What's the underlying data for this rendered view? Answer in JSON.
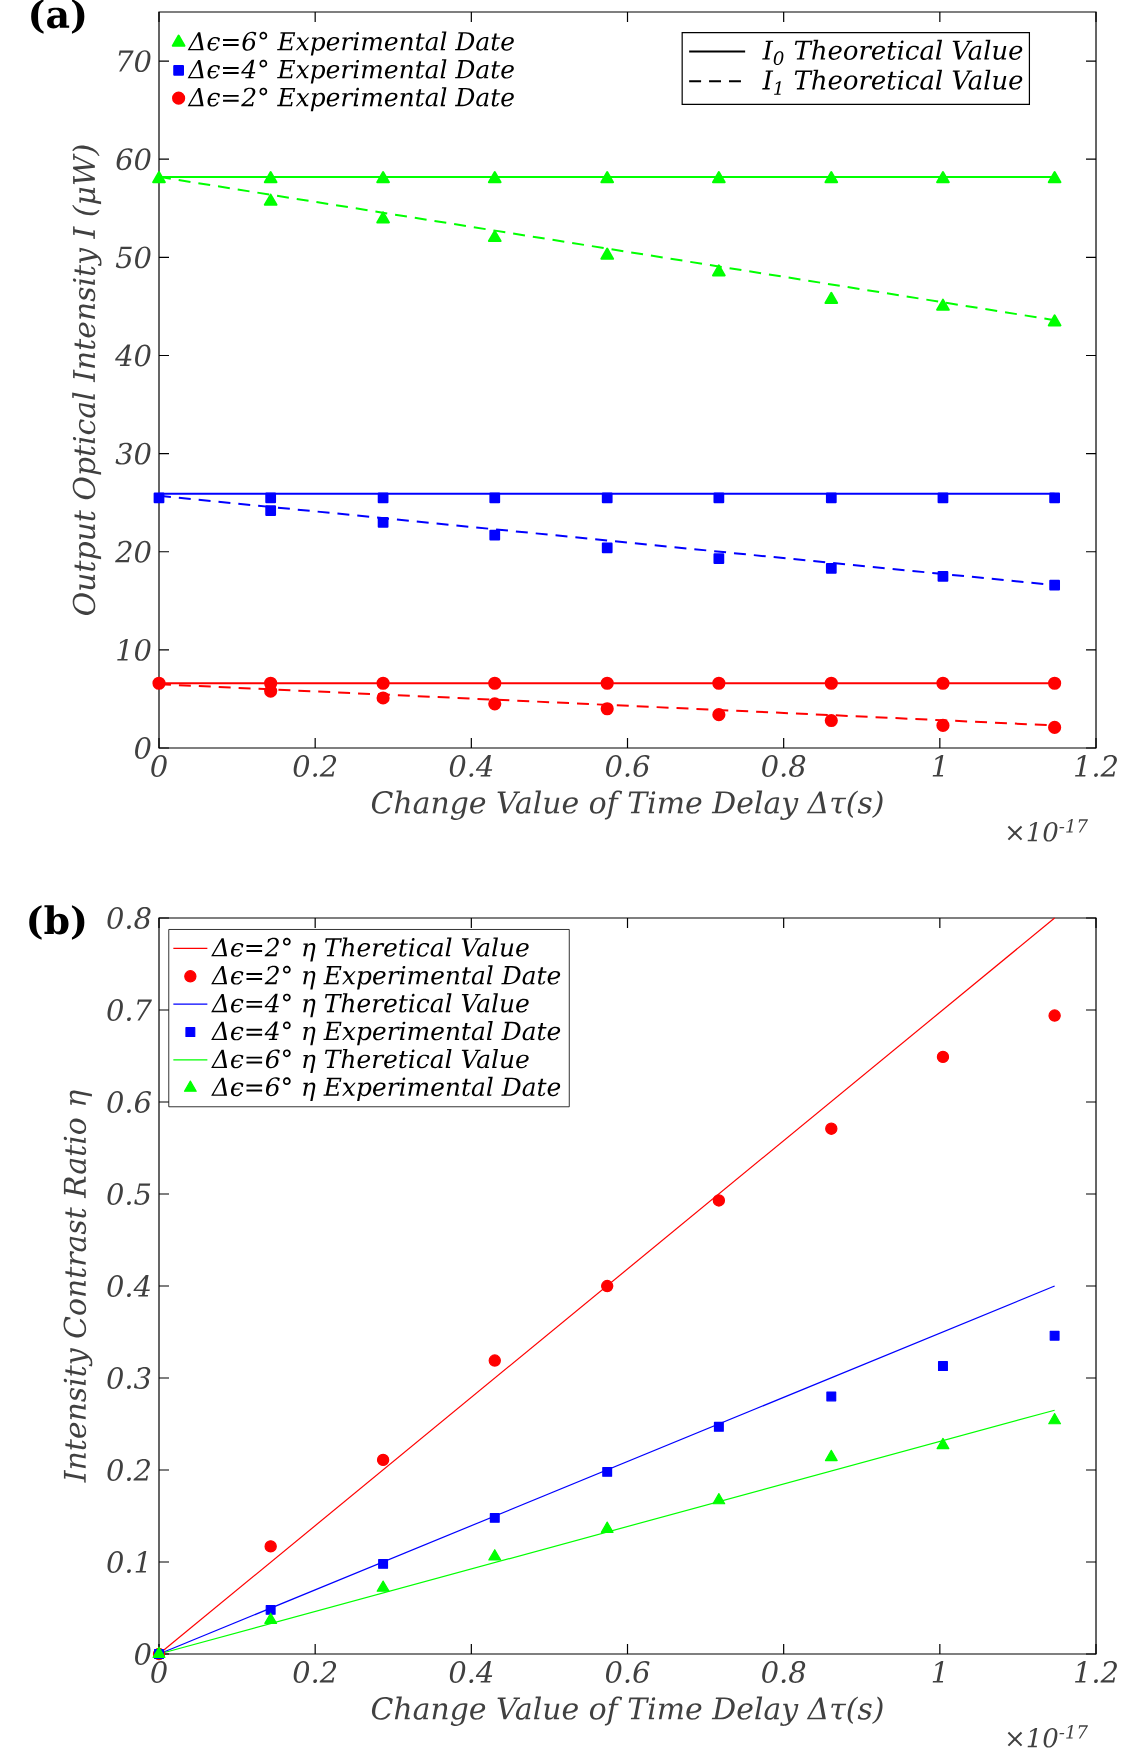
{
  "chart_data": [
    {
      "type": "line",
      "title": "(a)",
      "xlabel": "Change Value of Time Delay Δτ(s)",
      "ylabel": "Output Optical Intensity I (μW)",
      "annotations": [
        "×10$^{-17}$"
      ],
      "xlim": [
        0,
        1.2
      ],
      "xticks": [
        0,
        0.2,
        0.4,
        0.6,
        0.8,
        1,
        1.2
      ],
      "ylim": [
        0,
        75
      ],
      "yticks": [
        0,
        10,
        20,
        30,
        40,
        50,
        60,
        70
      ],
      "legend": "top left",
      "series": [
        {
          "name": "Δϵ=6° Experimental Date",
          "type": "scatter",
          "color": "#00ff00",
          "marker": "triangle",
          "x": [
            0,
            0.143,
            0.287,
            0.43,
            0.574,
            0.717,
            0.861,
            1.004,
            1.147,
            0.143,
            0.287,
            0.43,
            0.574,
            0.717,
            0.861,
            1.004,
            1.147
          ],
          "values": [
            58,
            58,
            58,
            58,
            58,
            58,
            58,
            58,
            58,
            55.7,
            53.9,
            52.0,
            50.2,
            48.5,
            45.7,
            45.0,
            43.4
          ]
        },
        {
          "name": "Δϵ=4° Experimental Date",
          "type": "scatter",
          "color": "#0000ff",
          "marker": "square",
          "x": [
            0,
            0.143,
            0.287,
            0.43,
            0.574,
            0.717,
            0.861,
            1.004,
            1.147,
            0.143,
            0.287,
            0.43,
            0.574,
            0.717,
            0.861,
            1.004,
            1.147
          ],
          "values": [
            25.5,
            25.5,
            25.5,
            25.5,
            25.5,
            25.5,
            25.5,
            25.5,
            25.5,
            24.2,
            23.0,
            21.7,
            20.4,
            19.3,
            18.3,
            17.5,
            16.6
          ]
        },
        {
          "name": "Δϵ=2° Experimental Date",
          "type": "scatter",
          "color": "#ff0000",
          "marker": "circle",
          "x": [
            0,
            0.143,
            0.287,
            0.43,
            0.574,
            0.717,
            0.861,
            1.004,
            1.147,
            0.143,
            0.287,
            0.43,
            0.574,
            0.717,
            0.861,
            1.004,
            1.147
          ],
          "values": [
            6.6,
            6.6,
            6.6,
            6.6,
            6.6,
            6.6,
            6.6,
            6.6,
            6.6,
            5.8,
            5.1,
            4.5,
            4.0,
            3.4,
            2.8,
            2.3,
            2.1
          ]
        },
        {
          "type": "line",
          "color": "#00ff00",
          "line_style": "solid",
          "x": [
            0,
            1.147
          ],
          "values": [
            58.2,
            58.2
          ]
        },
        {
          "type": "line",
          "color": "#00ff00",
          "line_style": "dashed",
          "x": [
            0,
            1.147
          ],
          "values": [
            58.2,
            43.6
          ]
        },
        {
          "type": "line",
          "color": "#0000ff",
          "line_style": "solid",
          "x": [
            0,
            1.147
          ],
          "values": [
            25.9,
            25.9
          ]
        },
        {
          "type": "line",
          "color": "#0000ff",
          "line_style": "dashed",
          "x": [
            0,
            1.147
          ],
          "values": [
            25.7,
            16.6
          ]
        },
        {
          "type": "line",
          "color": "#ff0000",
          "line_style": "solid",
          "x": [
            0,
            1.147
          ],
          "values": [
            6.6,
            6.6
          ]
        },
        {
          "type": "line",
          "color": "#ff0000",
          "line_style": "dashed",
          "x": [
            0,
            1.147
          ],
          "values": [
            6.5,
            2.3
          ]
        },
        {
          "name": "I$_{0}$ Theoretical Value",
          "type": "line",
          "color": "#000000",
          "line_style": "solid",
          "values": [
            null,
            null
          ]
        },
        {
          "name": "I$_{1}$ Theoretical Value",
          "type": "line",
          "color": "#000000",
          "line_style": "dashed",
          "values": [
            null,
            null
          ]
        }
      ]
    },
    {
      "type": "line",
      "title": "(b)",
      "xlabel": "Change Value of Time Delay Δτ(s)",
      "ylabel": "Intensity Contrast Ratio η",
      "annotations": [
        "×10$^{-17}$"
      ],
      "xlim": [
        0,
        1.2
      ],
      "xticks": [
        0,
        0.2,
        0.4,
        0.6,
        0.8,
        1,
        1.2
      ],
      "ylim": [
        0,
        0.8
      ],
      "yticks": [
        0,
        0.1,
        0.2,
        0.3,
        0.4,
        0.5,
        0.6,
        0.7,
        0.8
      ],
      "legend": "top left",
      "series": [
        {
          "name": "Δϵ=2° η Theretical Value",
          "type": "line",
          "color": "#ff0000",
          "line_style": "solid",
          "x": [
            0,
            1.147
          ],
          "values": [
            0,
            0.8
          ]
        },
        {
          "name": "Δϵ=2° η Experimental Date",
          "type": "scatter",
          "color": "#ff0000",
          "marker": "circle",
          "x": [
            0,
            0.143,
            0.287,
            0.43,
            0.574,
            0.717,
            0.861,
            1.004,
            1.147
          ],
          "values": [
            0,
            0.117,
            0.211,
            0.319,
            0.4,
            0.493,
            0.571,
            0.649,
            0.694
          ]
        },
        {
          "name": "Δϵ=4° η Theretical Value",
          "type": "line",
          "color": "#0000ff",
          "line_style": "solid",
          "x": [
            0,
            1.147
          ],
          "values": [
            0,
            0.4
          ]
        },
        {
          "name": "Δϵ=4° η Experimental Date",
          "type": "scatter",
          "color": "#0000ff",
          "marker": "square",
          "x": [
            0,
            0.143,
            0.287,
            0.43,
            0.574,
            0.717,
            0.861,
            1.004,
            1.147
          ],
          "values": [
            0,
            0.048,
            0.098,
            0.148,
            0.198,
            0.247,
            0.28,
            0.313,
            0.346
          ]
        },
        {
          "name": "Δϵ=6° η Theretical Value",
          "type": "line",
          "color": "#00ff00",
          "line_style": "solid",
          "x": [
            0,
            1.147
          ],
          "values": [
            0,
            0.265
          ]
        },
        {
          "name": "Δϵ=6° η Experimental Date",
          "type": "scatter",
          "color": "#00ff00",
          "marker": "triangle",
          "x": [
            0,
            0.143,
            0.287,
            0.43,
            0.574,
            0.717,
            0.861,
            1.004,
            1.147
          ],
          "values": [
            0,
            0.037,
            0.072,
            0.106,
            0.136,
            0.167,
            0.214,
            0.227,
            0.254
          ]
        }
      ]
    }
  ]
}
